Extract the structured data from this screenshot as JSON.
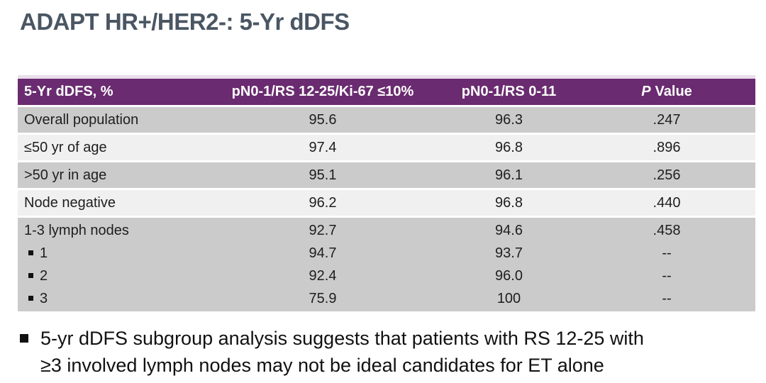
{
  "slide": {
    "title": "ADAPT HR+/HER2-: 5-Yr dDFS"
  },
  "table": {
    "headers": {
      "col1": "5-Yr dDFS, %",
      "col2": "pN0-1/RS 12-25/Ki-67 ≤10%",
      "col3": "pN0-1/RS 0-11",
      "col4_italic": "P",
      "col4_rest": "Value"
    },
    "rows": [
      {
        "label": "Overall population",
        "rs1225": "95.6",
        "rs011": "96.3",
        "p": ".247"
      },
      {
        "label": "≤50 yr of age",
        "rs1225": "97.4",
        "rs011": "96.8",
        "p": ".896"
      },
      {
        "label": ">50 yr in age",
        "rs1225": "95.1",
        "rs011": "96.1",
        "p": ".256"
      },
      {
        "label": "Node negative",
        "rs1225": "96.2",
        "rs011": "96.8",
        "p": ".440"
      },
      {
        "label": "1-3 lymph nodes",
        "rs1225": "92.7",
        "rs011": "94.6",
        "p": ".458"
      },
      {
        "label": "1",
        "rs1225": "94.7",
        "rs011": "93.7",
        "p": "--"
      },
      {
        "label": "2",
        "rs1225": "92.4",
        "rs011": "96.0",
        "p": "--"
      },
      {
        "label": "3",
        "rs1225": "75.9",
        "rs011": "100",
        "p": "--"
      }
    ]
  },
  "footnote": {
    "line1": "5-yr dDFS subgroup analysis suggests that patients with RS 12-25 with",
    "line2": "≥3 involved lymph nodes may not be ideal candidates for ET alone"
  },
  "colors": {
    "header_purple": "#6a2b70",
    "header_border_lavender": "#e8deea",
    "row_dark_gray": "#cccbcb",
    "row_light_gray": "#f1f0f0",
    "title_slate": "#4a5663",
    "body_text": "#1e1e1e"
  }
}
